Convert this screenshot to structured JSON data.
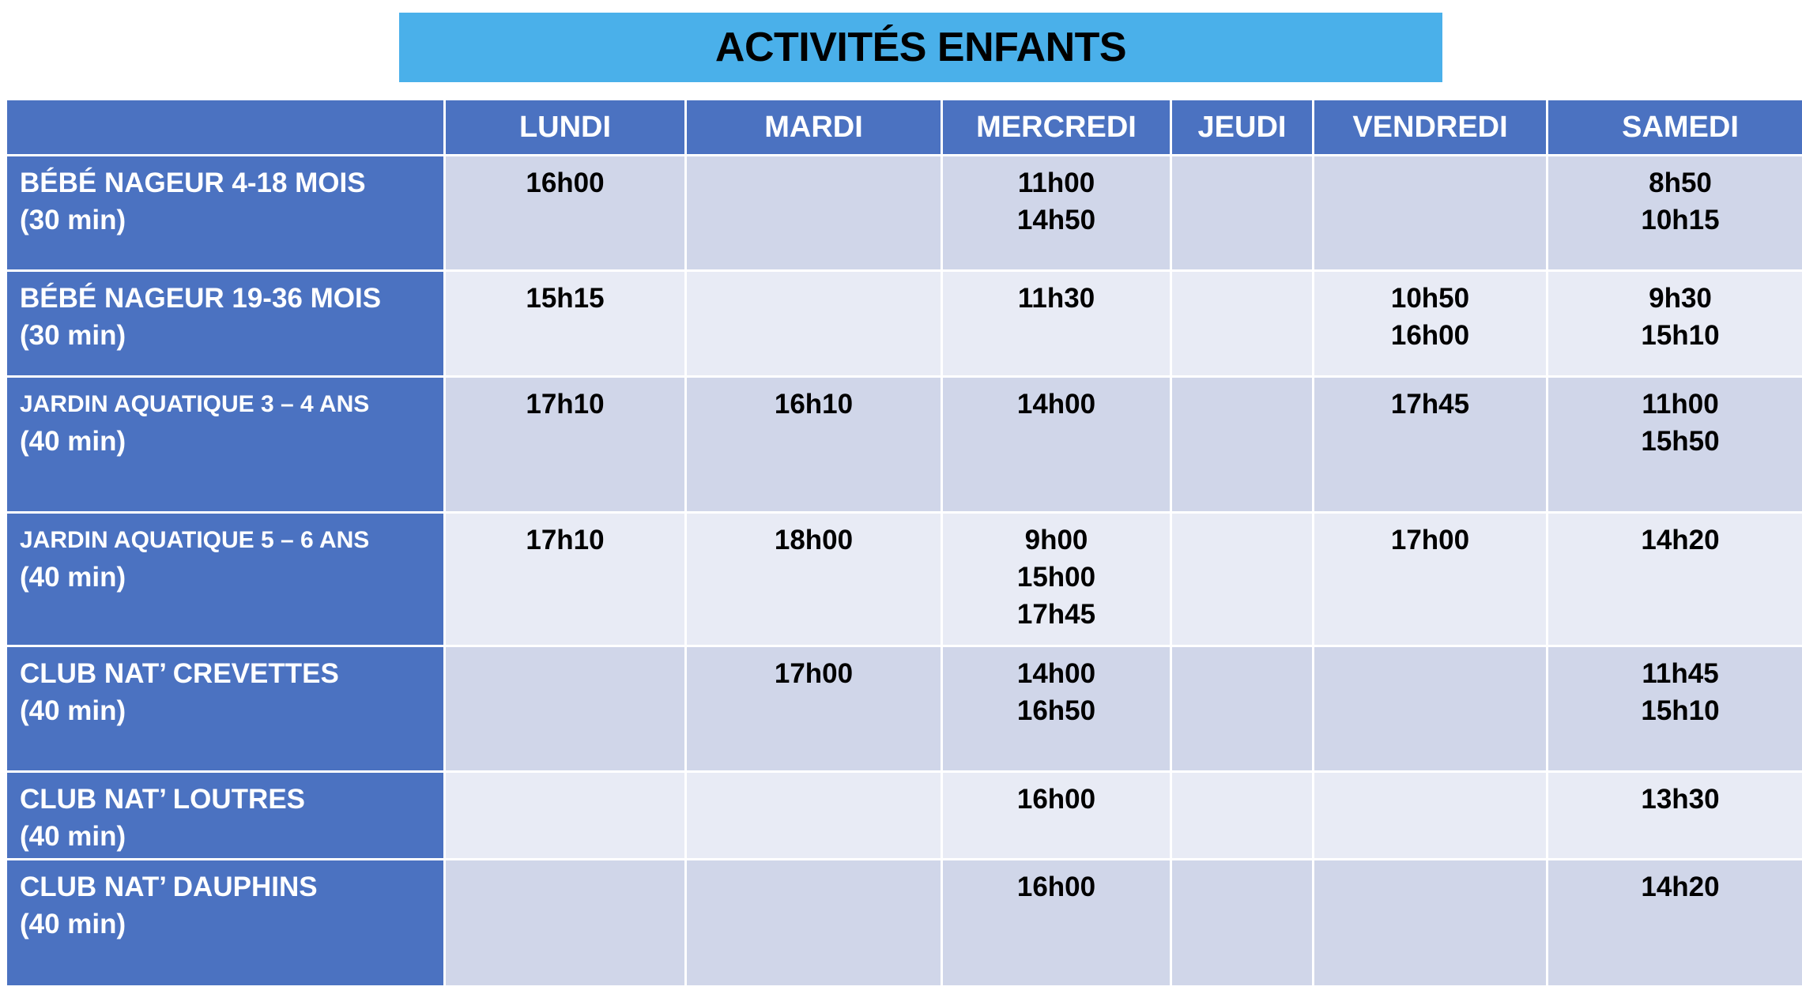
{
  "title": "ACTIVITÉS ENFANTS",
  "days": [
    "LUNDI",
    "MARDI",
    "MERCREDI",
    "JEUDI",
    "VENDREDI",
    "SAMEDI"
  ],
  "colors": {
    "title_bg": "#4ab0ea",
    "header_bg": "#4b72c1",
    "row_odd": "#d0d6e9",
    "row_even": "#e8ebf5"
  },
  "rows": [
    {
      "name": "BÉBÉ NAGEUR 4-18 MOIS",
      "duration": "(30 min)",
      "times": [
        [
          "16h00"
        ],
        [],
        [
          "11h00",
          "14h50"
        ],
        [],
        [],
        [
          "8h50",
          "10h15"
        ]
      ]
    },
    {
      "name": "BÉBÉ NAGEUR 19-36 MOIS",
      "duration": "(30 min)",
      "times": [
        [
          "15h15"
        ],
        [],
        [
          "11h30"
        ],
        [],
        [
          "10h50",
          "16h00"
        ],
        [
          "9h30",
          "15h10"
        ]
      ]
    },
    {
      "name": "JARDIN AQUATIQUE 3 – 4 ANS",
      "duration": "(40 min)",
      "times": [
        [
          "17h10"
        ],
        [
          "16h10"
        ],
        [
          "14h00"
        ],
        [],
        [
          "17h45"
        ],
        [
          "11h00",
          "15h50"
        ]
      ]
    },
    {
      "name": "JARDIN AQUATIQUE 5 – 6 ANS",
      "duration": "(40 min)",
      "times": [
        [
          "17h10"
        ],
        [
          "18h00"
        ],
        [
          "9h00",
          "15h00",
          "17h45"
        ],
        [],
        [
          "17h00"
        ],
        [
          "14h20"
        ]
      ]
    },
    {
      "name": "CLUB NAT’ CREVETTES",
      "duration": "(40 min)",
      "times": [
        [],
        [
          "17h00"
        ],
        [
          "14h00",
          "16h50"
        ],
        [],
        [],
        [
          "11h45",
          "15h10"
        ]
      ]
    },
    {
      "name": "CLUB NAT’ LOUTRES",
      "duration": "(40 min)",
      "times": [
        [],
        [],
        [
          "16h00"
        ],
        [],
        [],
        [
          "13h30"
        ]
      ]
    },
    {
      "name": "CLUB NAT’ DAUPHINS",
      "duration": "(40 min)",
      "times": [
        [],
        [],
        [
          "16h00"
        ],
        [],
        [],
        [
          "14h20"
        ]
      ]
    }
  ]
}
